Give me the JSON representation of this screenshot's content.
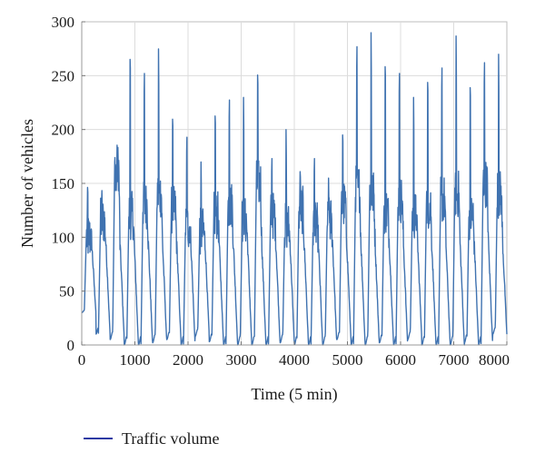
{
  "chart_data": {
    "type": "line",
    "title": "",
    "xlabel": "Time (5 min)",
    "ylabel": "Number of vehicles",
    "xlim": [
      0,
      8000
    ],
    "ylim": [
      0,
      300
    ],
    "x_ticks": [
      0,
      1000,
      2000,
      3000,
      4000,
      5000,
      6000,
      7000,
      8000
    ],
    "y_ticks": [
      0,
      50,
      100,
      150,
      200,
      250,
      300
    ],
    "x_tick_labels": [
      "0",
      "1000",
      "2000",
      "3000",
      "4000",
      "5000",
      "6000",
      "7000",
      "8000"
    ],
    "y_tick_labels": [
      "0",
      "50",
      "100",
      "150",
      "200",
      "250",
      "300"
    ],
    "grid": true,
    "legend_position": "bottom-left",
    "colors": {
      "series": "#3f72b0",
      "grid": "#dcdcdc",
      "axis": "#999999",
      "legend_line": "#2b3aa3"
    },
    "x_step": 5,
    "series": [
      {
        "name": "Traffic volume",
        "daily_peaks": [
          [
            30,
            100,
            150
          ],
          [
            10,
            115,
            145
          ],
          [
            5,
            165,
            163
          ],
          [
            0,
            120,
            272
          ],
          [
            0,
            130,
            255
          ],
          [
            2,
            140,
            275
          ],
          [
            5,
            125,
            215
          ],
          [
            0,
            110,
            195
          ],
          [
            8,
            105,
            170
          ],
          [
            3,
            120,
            218
          ],
          [
            0,
            130,
            230
          ],
          [
            0,
            115,
            230
          ],
          [
            0,
            150,
            257
          ],
          [
            0,
            120,
            175
          ],
          [
            2,
            110,
            200
          ],
          [
            0,
            125,
            165
          ],
          [
            0,
            110,
            175
          ],
          [
            0,
            115,
            155
          ],
          [
            5,
            130,
            200
          ],
          [
            0,
            145,
            280
          ],
          [
            0,
            140,
            290
          ],
          [
            2,
            125,
            265
          ],
          [
            0,
            135,
            255
          ],
          [
            5,
            120,
            230
          ],
          [
            0,
            130,
            250
          ],
          [
            0,
            135,
            260
          ],
          [
            0,
            140,
            287
          ],
          [
            2,
            120,
            245
          ],
          [
            0,
            150,
            265
          ],
          [
            10,
            140,
            270
          ]
        ]
      }
    ]
  }
}
